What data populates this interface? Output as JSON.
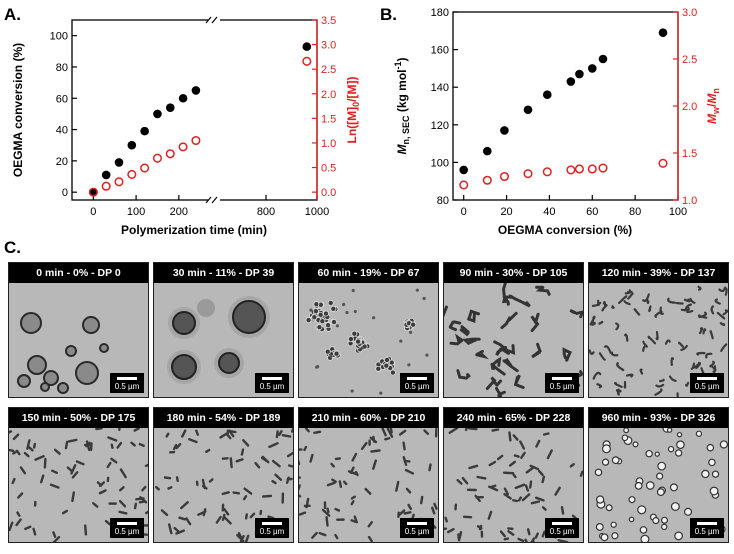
{
  "panel_labels": {
    "a": "A.",
    "b": "B.",
    "c": "C."
  },
  "chart_data": [
    {
      "type": "scatter",
      "panel": "A.",
      "xlabel": "Polymerization time (min)",
      "ylabel_left": "OEGMA conversion (%)",
      "ylabel_right": "Ln([M]0/[M])",
      "ylabel_right_parts": [
        "Ln([M]",
        "0",
        "/[M])"
      ],
      "x_ticks_left_segment": [
        "0",
        "100",
        "200"
      ],
      "x_ticks_right_segment": [
        "800",
        "1000"
      ],
      "x_axis_break": true,
      "y_ticks_left": [
        "0",
        "20",
        "40",
        "60",
        "80",
        "100"
      ],
      "y_ticks_right": [
        "0.0",
        "0.5",
        "1.0",
        "1.5",
        "2.0",
        "2.5",
        "3.0",
        "3.5"
      ],
      "ylim_left": [
        -5,
        110
      ],
      "ylim_right": [
        -0.16,
        3.5
      ],
      "right_axis_color": "#e02020",
      "series": [
        {
          "axis": "left",
          "marker": "filled",
          "color": "#000000",
          "x": [
            0,
            30,
            60,
            90,
            120,
            150,
            180,
            210,
            240,
            960
          ],
          "y": [
            0,
            11,
            19,
            30,
            39,
            50,
            54,
            60,
            65,
            93
          ]
        },
        {
          "axis": "right",
          "marker": "open",
          "color": "#e02020",
          "x": [
            0,
            30,
            60,
            90,
            120,
            150,
            180,
            210,
            240,
            960
          ],
          "y": [
            0.0,
            0.12,
            0.21,
            0.36,
            0.49,
            0.69,
            0.78,
            0.92,
            1.05,
            2.66
          ]
        }
      ]
    },
    {
      "type": "scatter",
      "panel": "B.",
      "xlabel": "OEGMA conversion (%)",
      "ylabel_left_parts": [
        "M",
        "n, SEC",
        " (kg mol",
        "-1",
        ")"
      ],
      "ylabel_right_parts": [
        "M",
        "w",
        "/",
        "M",
        "n"
      ],
      "x_ticks": [
        "0",
        "20",
        "40",
        "60",
        "80",
        "100"
      ],
      "y_ticks_left": [
        "80",
        "100",
        "120",
        "140",
        "160",
        "180"
      ],
      "y_ticks_right": [
        "1.0",
        "1.5",
        "2.0",
        "2.5",
        "3.0"
      ],
      "xlim": [
        -5,
        100
      ],
      "ylim_left": [
        80,
        180
      ],
      "ylim_right": [
        1.0,
        3.0
      ],
      "right_axis_color": "#e02020",
      "series": [
        {
          "axis": "left",
          "marker": "filled",
          "color": "#000000",
          "x": [
            0,
            11,
            19,
            30,
            39,
            50,
            54,
            60,
            65,
            93
          ],
          "y": [
            96,
            106,
            117,
            128,
            136,
            143,
            147,
            150,
            155,
            169
          ]
        },
        {
          "axis": "right",
          "marker": "open",
          "color": "#e02020",
          "x": [
            0,
            11,
            19,
            30,
            39,
            50,
            54,
            60,
            65,
            93
          ],
          "y": [
            1.16,
            1.21,
            1.25,
            1.28,
            1.3,
            1.32,
            1.33,
            1.33,
            1.34,
            1.39
          ]
        }
      ]
    }
  ],
  "tem_images": [
    {
      "caption": "0 min - 0% - DP 0",
      "scale": "0.5 µm",
      "morph": "vesicles"
    },
    {
      "caption": "30 min - 11% - DP 39",
      "scale": "0.5 µm",
      "morph": "large"
    },
    {
      "caption": "60 min - 19% - DP 67",
      "scale": "0.5 µm",
      "morph": "clusters"
    },
    {
      "caption": "90 min - 30% - DP 105",
      "scale": "0.5 µm",
      "morph": "chains"
    },
    {
      "caption": "120 min - 39% - DP 137",
      "scale": "0.5 µm",
      "morph": "worms"
    },
    {
      "caption": "150 min - 50% - DP 175",
      "scale": "0.5 µm",
      "morph": "short"
    },
    {
      "caption": "180 min - 54% - DP 189",
      "scale": "0.5 µm",
      "morph": "short"
    },
    {
      "caption": "210 min - 60% - DP 210",
      "scale": "0.5 µm",
      "morph": "short"
    },
    {
      "caption": "240 min - 65% - DP 228",
      "scale": "0.5 µm",
      "morph": "short"
    },
    {
      "caption": "960 min - 93% - DP 326",
      "scale": "0.5 µm",
      "morph": "holes"
    }
  ]
}
